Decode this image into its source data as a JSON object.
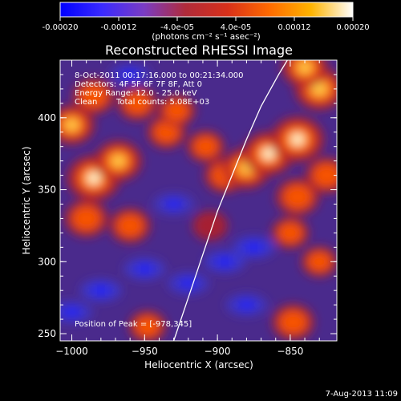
{
  "colorbar": {
    "ticks": [
      "-0.00020",
      "-0.00012",
      "-4.0e-05",
      "4.0e-05",
      "0.00012",
      "0.00020"
    ],
    "units": "(photons cm⁻² s⁻¹ asec⁻²)",
    "range": [
      -0.0002,
      0.0002
    ],
    "stops": [
      "#0000ff",
      "#3a2aff",
      "#7a3cc4",
      "#b02b3a",
      "#d8301a",
      "#ff6a00",
      "#ffb400",
      "#ffffff"
    ]
  },
  "chart_data": {
    "type": "heatmap",
    "title": "Reconstructed RHESSI Image",
    "xlabel": "Heliocentric X (arcsec)",
    "ylabel": "Heliocentric Y (arcsec)",
    "xlim": [
      -1008,
      -818
    ],
    "ylim": [
      245,
      440
    ],
    "xticks": [
      -1000,
      -950,
      -900,
      -850
    ],
    "yticks": [
      250,
      300,
      350,
      400
    ],
    "xtick_labels": [
      "−1000",
      "−950",
      "−900",
      "−850"
    ],
    "ytick_labels": [
      "250",
      "300",
      "350",
      "400"
    ],
    "limb_curve": [
      [
        -930,
        245
      ],
      [
        -920,
        275
      ],
      [
        -910,
        305
      ],
      [
        -900,
        335
      ],
      [
        -890,
        360
      ],
      [
        -880,
        385
      ],
      [
        -870,
        408
      ],
      [
        -858,
        430
      ],
      [
        -852,
        440
      ]
    ],
    "blobs": [
      {
        "x": -985,
        "y": 358,
        "v": 1.0
      },
      {
        "x": -968,
        "y": 370,
        "v": 0.75
      },
      {
        "x": -1000,
        "y": 395,
        "v": 0.7
      },
      {
        "x": -990,
        "y": 330,
        "v": 0.6
      },
      {
        "x": -960,
        "y": 325,
        "v": 0.5
      },
      {
        "x": -985,
        "y": 415,
        "v": 0.55
      },
      {
        "x": -955,
        "y": 410,
        "v": 0.45
      },
      {
        "x": -935,
        "y": 390,
        "v": 0.4
      },
      {
        "x": -908,
        "y": 380,
        "v": 0.35
      },
      {
        "x": -895,
        "y": 360,
        "v": 0.5
      },
      {
        "x": -880,
        "y": 365,
        "v": 0.8
      },
      {
        "x": -865,
        "y": 375,
        "v": 0.9
      },
      {
        "x": -845,
        "y": 385,
        "v": 1.0
      },
      {
        "x": -845,
        "y": 345,
        "v": 0.6
      },
      {
        "x": -830,
        "y": 420,
        "v": 0.85
      },
      {
        "x": -840,
        "y": 435,
        "v": 0.7
      },
      {
        "x": -825,
        "y": 360,
        "v": 0.55
      },
      {
        "x": -850,
        "y": 320,
        "v": 0.35
      },
      {
        "x": -830,
        "y": 300,
        "v": 0.3
      },
      {
        "x": -948,
        "y": 255,
        "v": 0.35
      },
      {
        "x": -848,
        "y": 258,
        "v": 0.55
      },
      {
        "x": -928,
        "y": 405,
        "v": 0.35
      },
      {
        "x": -905,
        "y": 325,
        "v": 0.25
      },
      {
        "x": -980,
        "y": 280,
        "v": -0.55
      },
      {
        "x": -950,
        "y": 295,
        "v": -0.5
      },
      {
        "x": -920,
        "y": 285,
        "v": -0.45
      },
      {
        "x": -895,
        "y": 300,
        "v": -0.55
      },
      {
        "x": -875,
        "y": 310,
        "v": -0.6
      },
      {
        "x": -880,
        "y": 270,
        "v": -0.45
      },
      {
        "x": -1000,
        "y": 265,
        "v": -0.45
      },
      {
        "x": -930,
        "y": 340,
        "v": -0.4
      },
      {
        "x": -960,
        "y": 430,
        "v": -0.35
      }
    ]
  },
  "overlay": {
    "line1": "8-Oct-2011 00:17:16.000 to 00:21:34.000",
    "line2": "Detectors: 4F 5F 6F 7F 8F, Att 0",
    "line3": "Energy Range: 12.0 - 25.0 keV",
    "line4_a": "Clean",
    "line4_b": "Total counts: 5.08E+03",
    "peak": "Position of Peak = [-978,345]"
  },
  "footer": {
    "date": "7-Aug-2013 11:09"
  }
}
